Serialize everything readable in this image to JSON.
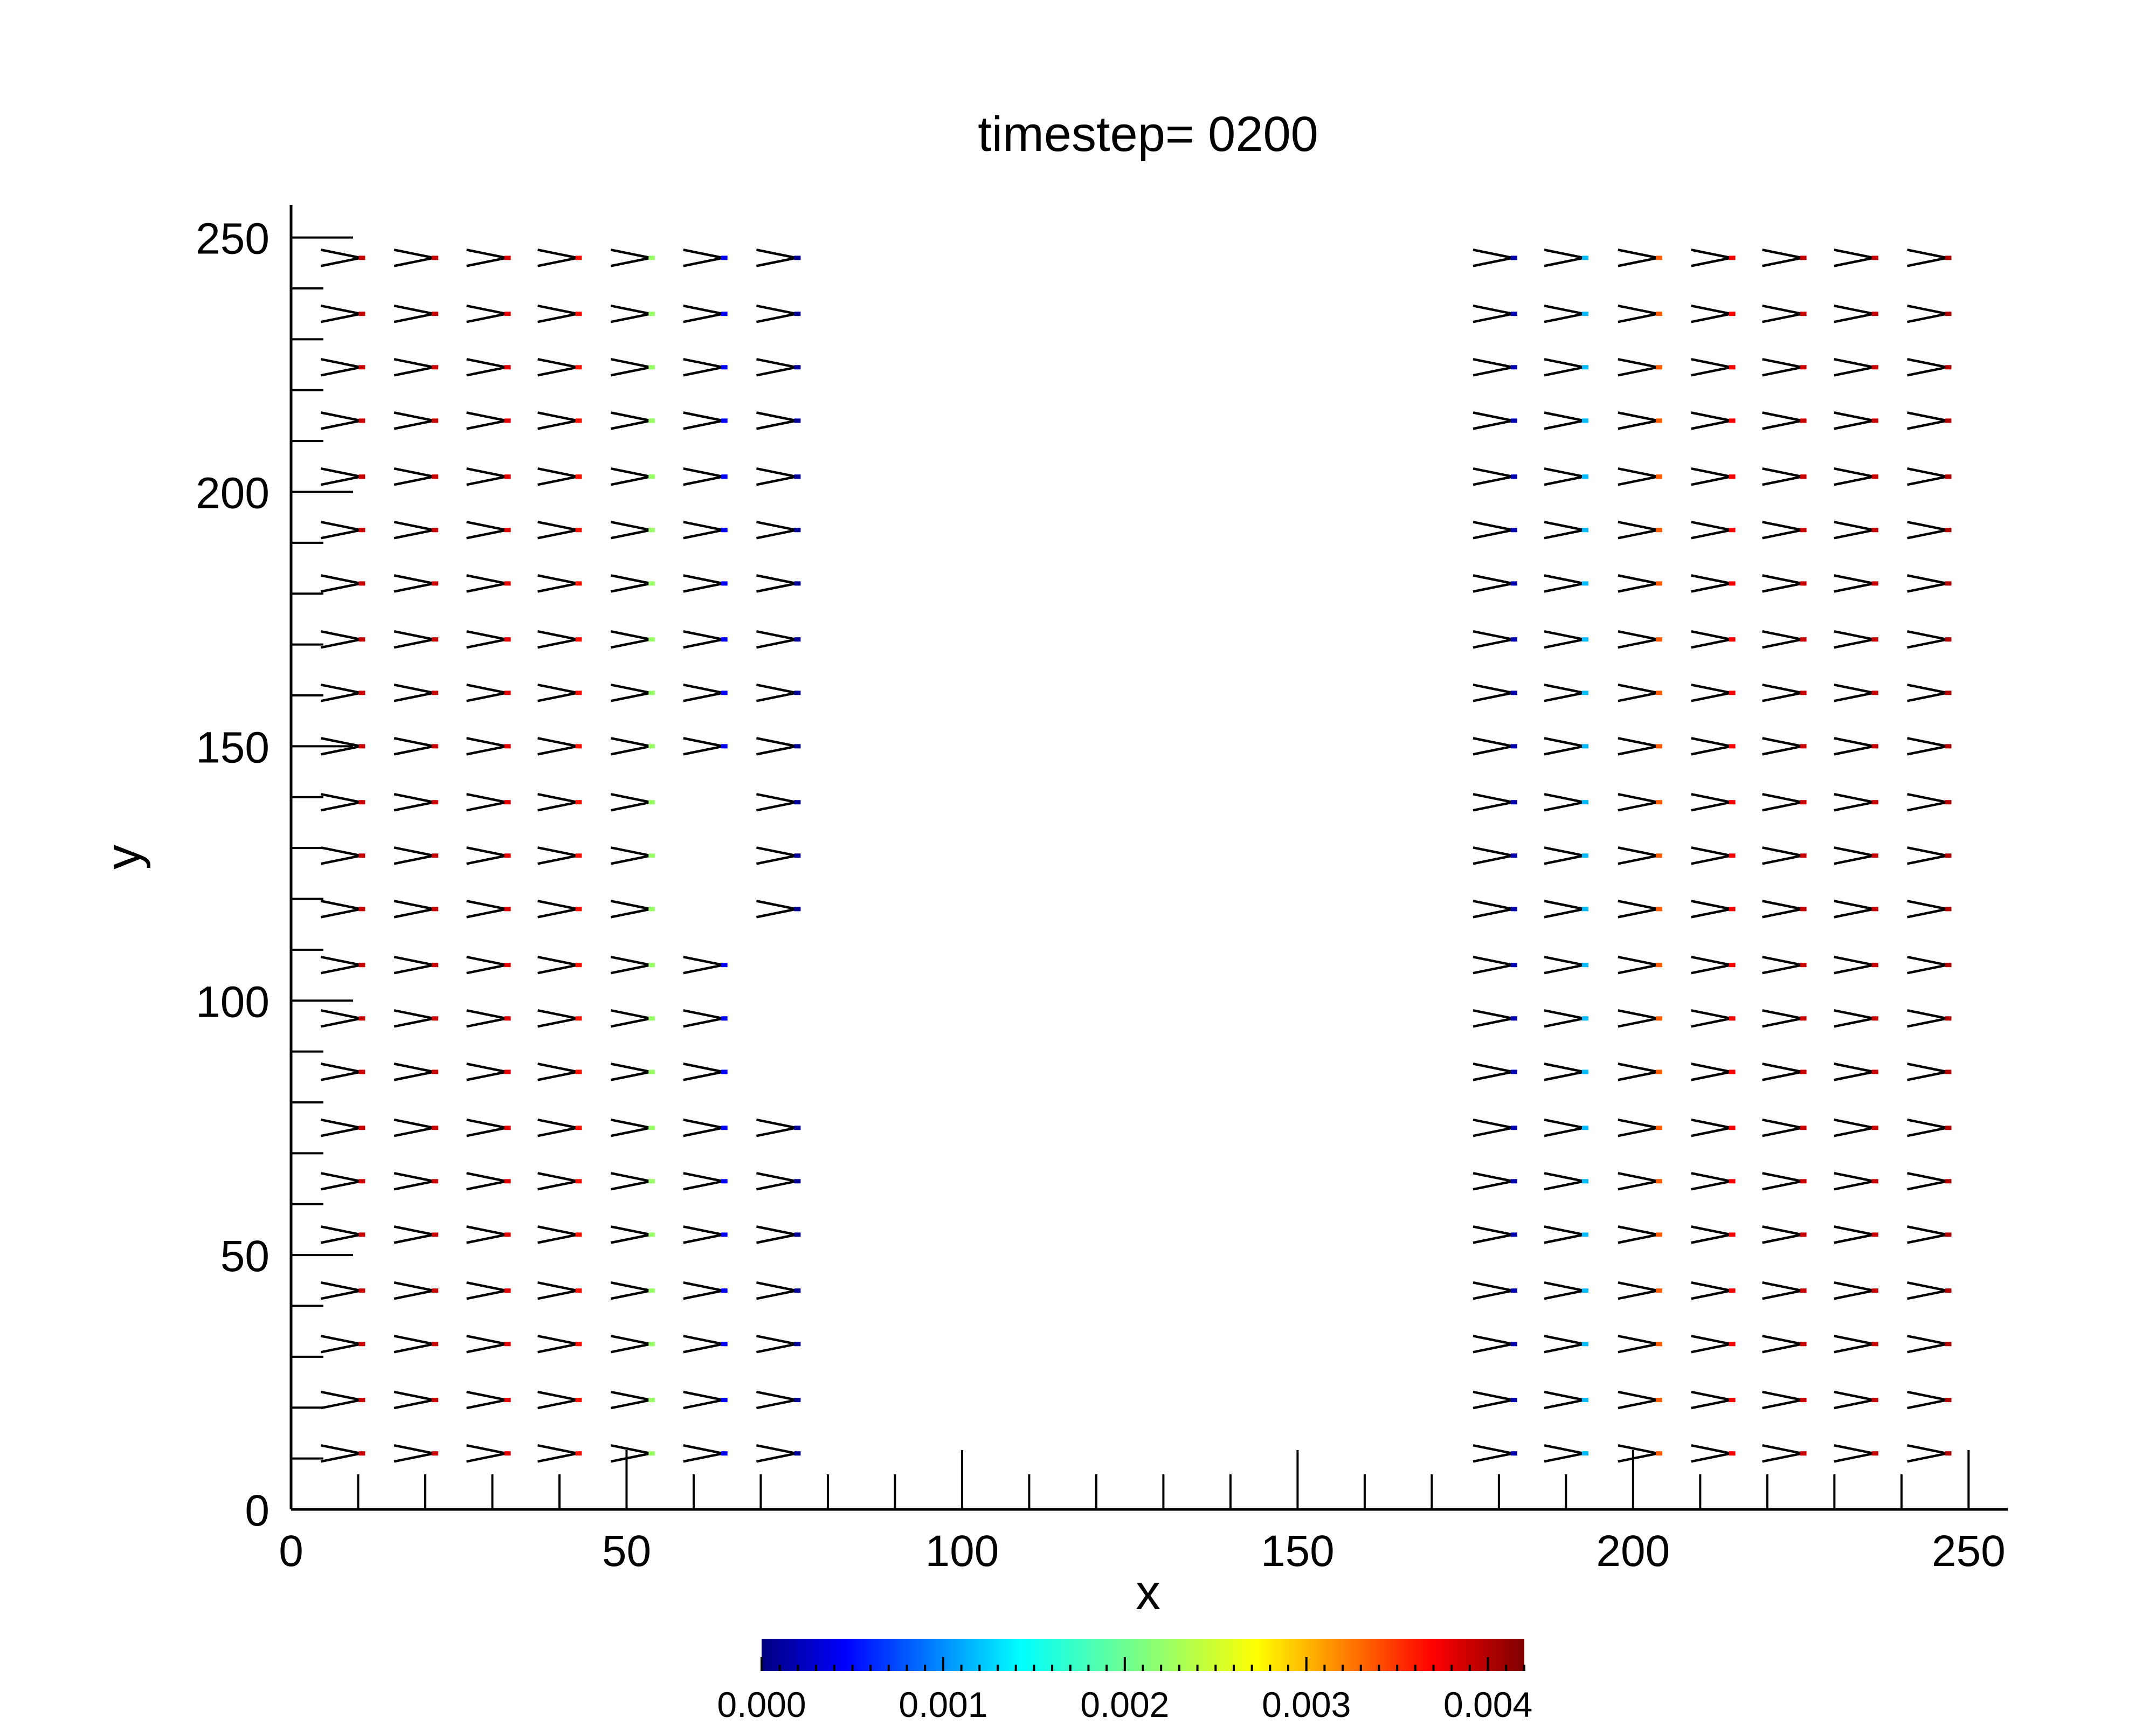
{
  "chart_data": {
    "type": "vector-field",
    "title": "timestep= 0200",
    "xlabel": "x",
    "ylabel": "y",
    "xlim": [
      0,
      256
    ],
    "ylim": [
      0,
      256
    ],
    "x_ticks": [
      0,
      50,
      100,
      150,
      200,
      250
    ],
    "y_ticks": [
      0,
      50,
      100,
      150,
      200,
      250
    ],
    "x_tick_labels": [
      "0",
      "50",
      "100",
      "150",
      "200",
      "250"
    ],
    "y_tick_labels": [
      "0",
      "50",
      "100",
      "150",
      "200",
      "250"
    ],
    "grid": false,
    "glyph_columns_x": [
      10.4,
      21.3,
      32.1,
      42.7,
      53.6,
      64.4,
      75.3,
      182.1,
      192.7,
      203.7,
      214.6,
      225.2,
      235.9,
      246.8
    ],
    "glyph_rows_y": [
      11,
      21.5,
      32.5,
      43,
      54,
      64.5,
      75,
      86,
      96.5,
      107,
      118,
      128.5,
      139,
      150,
      160.5,
      171,
      182,
      192.5,
      203,
      214,
      224.5,
      235,
      246
    ],
    "glyph_columns_missing_rows": {
      "64.4": [
        118,
        128.5,
        139
      ],
      "75.3": [
        86,
        96.5,
        107
      ]
    },
    "glyph_color_values": [
      0.0039,
      0.0039,
      0.0038,
      0.0036,
      0.0022,
      0.0005,
      0.0001,
      0.0002,
      0.0013,
      0.0033,
      0.0037,
      0.0039,
      0.0039,
      0.004
    ],
    "colorbar": {
      "colormap": "jet",
      "min": 0.0,
      "max": 0.0042,
      "ticks": [
        0.0,
        0.001,
        0.002,
        0.003,
        0.004
      ],
      "tick_labels": [
        "0.000",
        "0.001",
        "0.002",
        "0.003",
        "0.004"
      ]
    }
  }
}
